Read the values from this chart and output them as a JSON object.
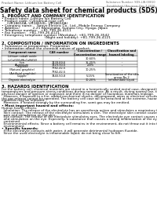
{
  "title": "Safety data sheet for chemical products (SDS)",
  "header_left": "Product Name: Lithium Ion Battery Cell",
  "header_right": "Substance Number: SDS-LIB-00010\nEstablished / Revision: Dec.7.2016",
  "section1_title": "1. PRODUCT AND COMPANY IDENTIFICATION",
  "section1_lines": [
    "• Product name: Lithium Ion Battery Cell",
    "• Product code: Cylindrical-type cell",
    "     (UR18650A, UR18650L, UR18650A)",
    "• Company name:    Sanyo Electric Co., Ltd., Mobile Energy Company",
    "• Address:            2-21 Kamionaka, Sumoto City, Hyogo, Japan",
    "• Telephone number:   +81-799-26-4111",
    "• Fax number:   +81-799-26-4121",
    "• Emergency telephone number (Weekday): +81-799-26-3542",
    "                                        (Night and holiday): +81-799-26-4121"
  ],
  "section2_title": "2. COMPOSITION / INFORMATION ON INGREDIENTS",
  "section2_intro": "• Substance or preparation: Preparation",
  "section2_subheader": "• Information about the chemical nature of product:",
  "table_headers": [
    "Component name",
    "CAS number",
    "Concentration /\nConcentration range",
    "Classification and\nhazard labeling"
  ],
  "table_rows": [
    [
      "Lithium cobalt oxide\n(LiCoO2/LiMnCoNiO2)",
      "-",
      "30-60%",
      "-"
    ],
    [
      "Iron",
      "7439-89-6",
      "15-25%",
      "-"
    ],
    [
      "Aluminum",
      "7429-90-5",
      "2-8%",
      "-"
    ],
    [
      "Graphite\n(Natural graphite)\n(Artificial graphite)",
      "7782-42-5\n7782-42-5",
      "10-25%",
      "-"
    ],
    [
      "Copper",
      "7440-50-8",
      "5-15%",
      "Sensitization of the skin\ngroup No.2"
    ],
    [
      "Organic electrolyte",
      "-",
      "10-20%",
      "Inflammable liquid"
    ]
  ],
  "section3_title": "3. HAZARDS IDENTIFICATION",
  "section3_body": [
    "For the battery cell, chemical materials are stored in a hermetically sealed metal case, designed to withstand",
    "temperatures and pressure-stress-conditions during normal use. As a result, during normal use, there is no",
    "physical danger of ignition or explosion and there is no danger of hazardous materials leakage.",
    "  However, if exposed to a fire, added mechanical shocks, decomposed, wires or electrical circuits may cause,",
    "the gas release cannot be operated. The battery cell case will be breached at the extreme, hazardous",
    "materials may be released.",
    "  Moreover, if heated strongly by the surrounding fire, somt gas may be emitted."
  ],
  "section3_hazard_title": "• Most important hazard and effects:",
  "section3_hazard_lines": [
    "Human health effects:",
    "  Inhalation: The release of the electrolyte has an anesthesia action and stimulates a respiratory tract.",
    "  Skin contact: The release of the electrolyte stimulates a skin. The electrolyte skin contact causes a",
    "  sore and stimulation on the skin.",
    "  Eye contact: The release of the electrolyte stimulates eyes. The electrolyte eye contact causes a sore",
    "  and stimulation on the eye. Especially, a substance that causes a strong inflammation of the eye is",
    "  contained.",
    "  Environmental effects: Since a battery cell remains in the environment, do not throw out it into the",
    "  environment."
  ],
  "section3_specific_title": "• Specific hazards:",
  "section3_specific_lines": [
    "  If the electrolyte contacts with water, it will generate detrimental hydrogen fluoride.",
    "  Since the used electrolyte is inflammable liquid, do not bring close to fire."
  ],
  "bg_color": "#ffffff",
  "text_color": "#000000",
  "line_color": "#aaaaaa",
  "table_header_bg": "#e0e0e0",
  "title_font_size": 5.5,
  "body_font_size": 3.2,
  "section_title_font_size": 3.8,
  "header_font_size": 2.8
}
